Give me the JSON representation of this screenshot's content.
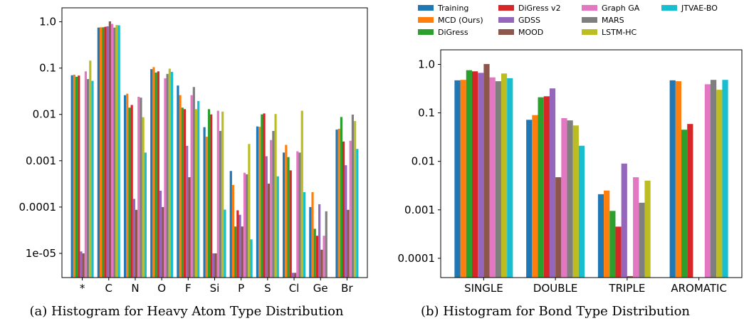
{
  "colors": {
    "Training": "#1f77b4",
    "MCD (Ours)": "#ff7f0e",
    "DiGress": "#2ca02c",
    "DiGress v2": "#d62728",
    "GDSS": "#9467bd",
    "MOOD": "#8c564b",
    "Graph GA": "#e377c2",
    "MARS": "#7f7f7f",
    "LSTM-HC": "#bcbd22",
    "JTVAE-BO": "#17becf"
  },
  "legend": [
    "Training",
    "MCD (Ours)",
    "DiGress",
    "DiGress v2",
    "GDSS",
    "MOOD",
    "Graph GA",
    "MARS",
    "LSTM-HC",
    "JTVAE-BO"
  ],
  "chart_data": [
    {
      "type": "bar",
      "scale": "log",
      "caption": "(a) Histogram for Heavy Atom Type Distribution",
      "ylim": [
        3e-06,
        2.0
      ],
      "yticks": [
        {
          "value": 1.0,
          "label": "1.0"
        },
        {
          "value": 0.1,
          "label": "0.1"
        },
        {
          "value": 0.01,
          "label": "0.01"
        },
        {
          "value": 0.001,
          "label": "0.001"
        },
        {
          "value": 0.0001,
          "label": "0.0001"
        },
        {
          "value": 1e-05,
          "label": "1e-05"
        }
      ],
      "categories": [
        "*",
        "C",
        "N",
        "O",
        "F",
        "Si",
        "P",
        "S",
        "Cl",
        "Ge",
        "Br"
      ],
      "series": [
        {
          "name": "Training",
          "values": [
            0.07,
            0.75,
            0.026,
            0.095,
            0.042,
            0.0053,
            0.0006,
            0.0055,
            0.0015,
            0.0001,
            0.0047
          ]
        },
        {
          "name": "MCD (Ours)",
          "values": [
            0.072,
            0.76,
            0.028,
            0.105,
            0.026,
            0.0033,
            0.0003,
            0.0054,
            0.0022,
            0.00021,
            0.0049
          ]
        },
        {
          "name": "DiGress",
          "values": [
            0.065,
            0.76,
            0.014,
            0.08,
            0.014,
            0.013,
            3.8e-05,
            0.01,
            0.0012,
            3.4e-05,
            0.0088
          ]
        },
        {
          "name": "DiGress v2",
          "values": [
            0.069,
            0.78,
            0.016,
            0.085,
            0.013,
            0.01,
            8.5e-05,
            0.0105,
            0.00062,
            2.4e-05,
            0.0026
          ]
        },
        {
          "name": "GDSS",
          "values": [
            1.1e-05,
            0.8,
            0.00015,
            0.000225,
            0.0021,
            1e-05,
            6.8e-05,
            0.00125,
            3.8e-06,
            0.000115,
            0.0008
          ]
        },
        {
          "name": "MOOD",
          "values": [
            1e-05,
            1.02,
            8.7e-05,
            0.0001,
            0.00044,
            1e-05,
            3.8e-05,
            0.00032,
            3.8e-06,
            1.2e-05,
            8.7e-05
          ]
        },
        {
          "name": "Graph GA",
          "values": [
            0.085,
            0.9,
            0.024,
            0.06,
            0.026,
            0.012,
            0.00055,
            0.0028,
            0.0016,
            2.4e-05,
            0.0027
          ]
        },
        {
          "name": "MARS",
          "values": [
            0.058,
            0.75,
            0.023,
            0.075,
            0.039,
            0.0044,
            0.00051,
            0.0044,
            0.0015,
            8.1e-05,
            0.0099
          ]
        },
        {
          "name": "LSTM-HC",
          "values": [
            0.145,
            0.85,
            0.0087,
            0.097,
            0.013,
            0.0115,
            0.0023,
            0.0102,
            0.012,
            3e-06,
            0.0072
          ]
        },
        {
          "name": "JTVAE-BO",
          "values": [
            0.053,
            0.84,
            0.0015,
            0.083,
            0.0195,
            8.8e-05,
            2e-05,
            0.00046,
            0.00021,
            3e-06,
            0.0018
          ]
        }
      ]
    },
    {
      "type": "bar",
      "scale": "log",
      "caption": "(b) Histogram for Bond Type Distribution",
      "ylim": [
        4e-05,
        2.0
      ],
      "yticks": [
        {
          "value": 1.0,
          "label": "1.0"
        },
        {
          "value": 0.1,
          "label": "0.1"
        },
        {
          "value": 0.01,
          "label": "0.01"
        },
        {
          "value": 0.001,
          "label": "0.001"
        },
        {
          "value": 0.0001,
          "label": "0.0001"
        }
      ],
      "categories": [
        "SINGLE",
        "DOUBLE",
        "TRIPLE",
        "AROMATIC"
      ],
      "series": [
        {
          "name": "Training",
          "values": [
            0.47,
            0.072,
            0.0021,
            0.47
          ]
        },
        {
          "name": "MCD (Ours)",
          "values": [
            0.48,
            0.09,
            0.0025,
            0.45
          ]
        },
        {
          "name": "DiGress",
          "values": [
            0.76,
            0.21,
            0.00095,
            0.045
          ]
        },
        {
          "name": "DiGress v2",
          "values": [
            0.72,
            0.22,
            0.00045,
            0.059
          ]
        },
        {
          "name": "GDSS",
          "values": [
            0.67,
            0.32,
            0.009,
            null
          ]
        },
        {
          "name": "MOOD",
          "values": [
            1.02,
            0.0047,
            4.3e-05,
            null
          ]
        },
        {
          "name": "Graph GA",
          "values": [
            0.54,
            0.078,
            0.0047,
            0.39
          ]
        },
        {
          "name": "MARS",
          "values": [
            0.45,
            0.07,
            0.0014,
            0.48
          ]
        },
        {
          "name": "LSTM-HC",
          "values": [
            0.65,
            0.055,
            0.004,
            0.3
          ]
        },
        {
          "name": "JTVAE-BO",
          "values": [
            0.52,
            0.021,
            null,
            0.48
          ]
        }
      ]
    }
  ]
}
